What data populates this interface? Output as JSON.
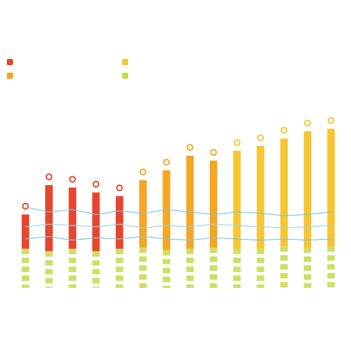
{
  "chart_data": {
    "type": "bar",
    "title": "",
    "subtitle": "",
    "categories": [
      "",
      "",
      "",
      "",
      "",
      "",
      "",
      "",
      "",
      "",
      "",
      "",
      "",
      ""
    ],
    "series": [
      {
        "color": "#e8452c",
        "values": [
          300,
          420,
          410,
          390,
          375,
          null,
          null,
          null,
          null,
          null,
          null,
          null,
          null,
          null
        ]
      },
      {
        "color": "#f5a623",
        "values": [
          null,
          null,
          null,
          null,
          null,
          440,
          480,
          540,
          520,
          null,
          null,
          null,
          null,
          null
        ]
      },
      {
        "color": "#f7c531",
        "values": [
          null,
          null,
          null,
          null,
          null,
          null,
          null,
          null,
          null,
          560,
          580,
          610,
          640,
          650
        ]
      },
      {
        "color": "#c9d84a",
        "values": [
          160,
          150,
          160,
          150,
          160,
          165,
          155,
          160,
          165,
          160,
          160,
          170,
          165,
          170
        ]
      }
    ],
    "lines": [
      {
        "color": "#7ec8e3",
        "values": [
          330,
          310,
          320,
          300,
          315,
          305,
          320,
          310,
          300,
          310,
          305,
          295,
          300,
          310
        ]
      },
      {
        "color": "#9bd3ea",
        "values": [
          250,
          260,
          255,
          250,
          260,
          245,
          255,
          250,
          260,
          255,
          250,
          245,
          250,
          255
        ]
      },
      {
        "color": "#7ec8e3",
        "values": [
          200,
          210,
          195,
          205,
          200,
          210,
          200,
          195,
          205,
          200,
          195,
          200,
          195,
          200
        ]
      }
    ],
    "ylim": [
      0,
      700
    ],
    "grid": false,
    "legend": [
      {
        "label": "",
        "color": "#e8452c"
      },
      {
        "label": "",
        "color": "#f5a623"
      },
      {
        "label": "",
        "color": "#f7c531"
      },
      {
        "label": "",
        "color": "#c9d84a"
      }
    ]
  }
}
